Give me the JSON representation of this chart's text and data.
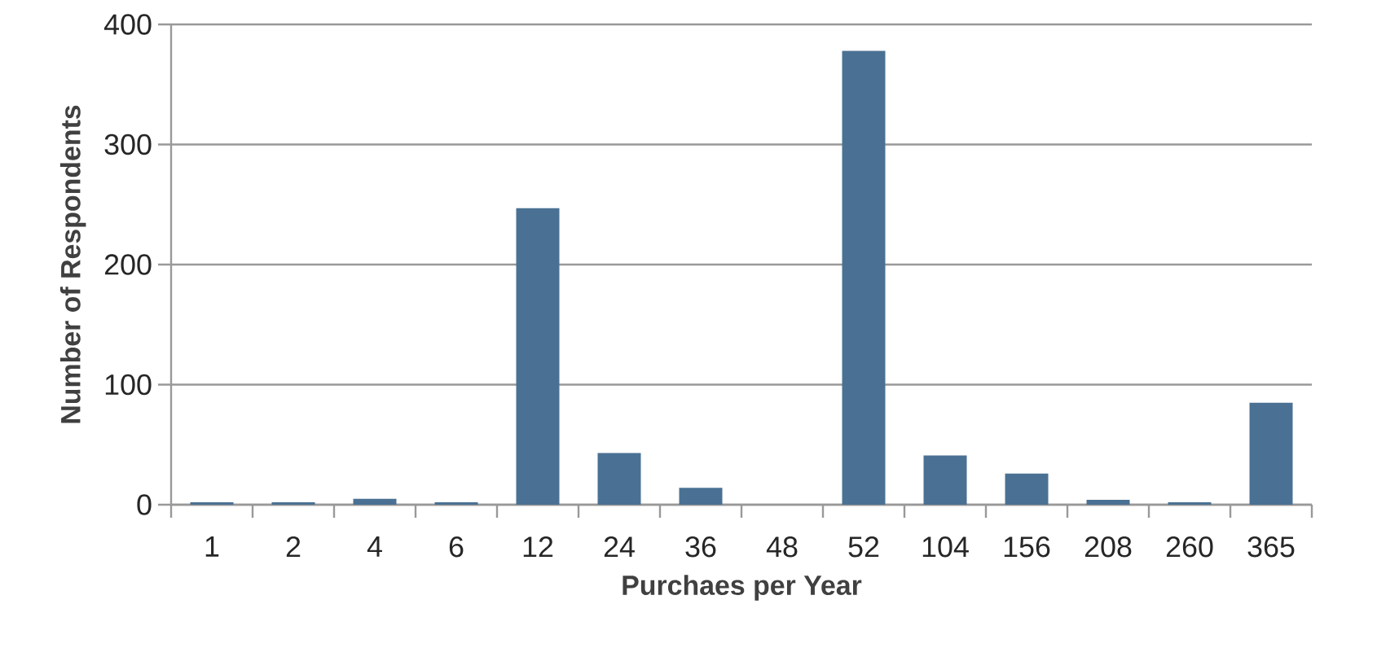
{
  "chart_data": {
    "type": "bar",
    "xlabel": "Purchaes per Year",
    "ylabel": "Number of Respondents",
    "categories": [
      "1",
      "2",
      "4",
      "6",
      "12",
      "24",
      "36",
      "48",
      "52",
      "104",
      "156",
      "208",
      "260",
      "365"
    ],
    "values": [
      2,
      2,
      5,
      2,
      247,
      43,
      14,
      0,
      378,
      41,
      26,
      4,
      2,
      85
    ],
    "color": "#4a7193",
    "ylim": [
      0,
      400
    ],
    "yticks": [
      0,
      100,
      200,
      300,
      400
    ],
    "grid": "y"
  }
}
